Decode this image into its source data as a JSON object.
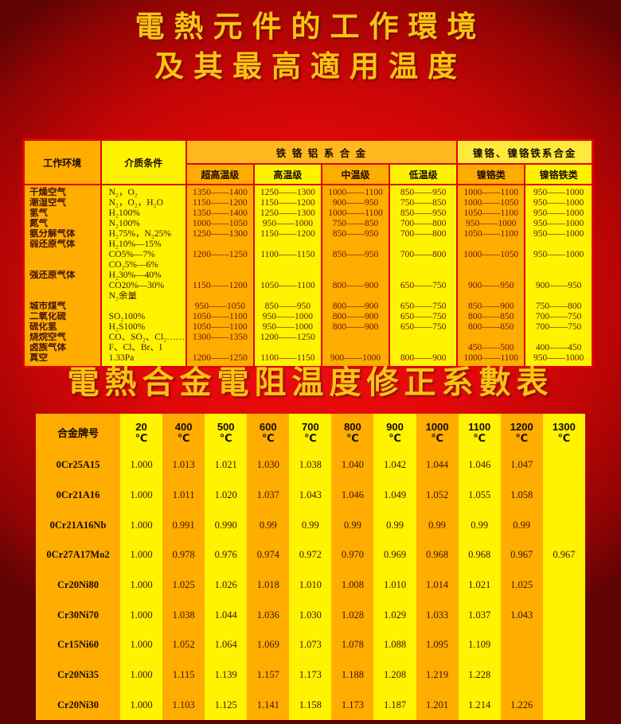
{
  "page": {
    "title_line1": "電熱元件的工作環境",
    "title_line2": "及其最高適用温度",
    "section2_title": "電熱合金電阻温度修正系數表"
  },
  "colors": {
    "background_red": "#d40808",
    "title_gold": "#f7c513",
    "band_orange": "#ffad00",
    "band_yellow": "#fff301",
    "grid_red": "#de0404",
    "value_text": "#6a1404"
  },
  "env_table": {
    "header": {
      "work_env": "工作环境",
      "medium": "介质条件",
      "fe_cr_al_group": "铁 铬 铝 系 合 金",
      "ni_cr_group": "镍铬、镍铬铁系合金",
      "sub": [
        "超高温级",
        "高温级",
        "中温级",
        "低温级",
        "镍铬类",
        "镍铬铁类"
      ]
    },
    "lines": [
      {
        "env": "干燥空气",
        "medium": "N₂，O₂",
        "values": [
          "1350——1400",
          "1250——1300",
          "1000——1100",
          "850——950",
          "1000——1100",
          "950——1000"
        ]
      },
      {
        "env": "潮湿空气",
        "medium": "N₂，O₂，H₂O",
        "values": [
          "1150——1200",
          "1150——1200",
          "900——950",
          "750——850",
          "1000——1050",
          "950——1000"
        ]
      },
      {
        "env": "氢气",
        "medium": "H₂100%",
        "values": [
          "1350——1400",
          "1250——1300",
          "1000——1100",
          "850——950",
          "1050——1100",
          "950——1000"
        ]
      },
      {
        "env": "氮气",
        "medium": "N₂100%",
        "values": [
          "1000——1050",
          "950——1000",
          "750——850",
          "700——800",
          "950——1000",
          "950——1000"
        ]
      },
      {
        "env": "氨分解气体",
        "medium": "H₂75%，N₂25%",
        "values": [
          "1250——1300",
          "1150——1200",
          "850——950",
          "700——800",
          "1050——1100",
          "950——1000"
        ]
      },
      {
        "env": "弱还原气体",
        "medium": "H₂10%—15%",
        "values": [
          "",
          "",
          "",
          "",
          "",
          ""
        ]
      },
      {
        "env": "",
        "medium": "CO5%—7%",
        "values": [
          "1200——1250",
          "1100——1150",
          "850——950",
          "700——800",
          "1000——1050",
          "950——1000"
        ]
      },
      {
        "env": "",
        "medium": "CO₂5%—6%",
        "values": [
          "",
          "",
          "",
          "",
          "",
          ""
        ]
      },
      {
        "env": "强还原气体",
        "medium": "H₂30%—40%",
        "values": [
          "",
          "",
          "",
          "",
          "",
          ""
        ]
      },
      {
        "env": "",
        "medium": "CO20%—30%",
        "values": [
          "1150——1200",
          "1050——1100",
          "800——900",
          "650——750",
          "900——950",
          "900——950"
        ]
      },
      {
        "env": "",
        "medium": "N₂余量",
        "values": [
          "",
          "",
          "",
          "",
          "",
          ""
        ]
      },
      {
        "env": "城市煤气",
        "medium": "",
        "values": [
          "950——1050",
          "850——950",
          "800——900",
          "650——750",
          "850——900",
          "750——800"
        ]
      },
      {
        "env": "二氧化硫",
        "medium": "SO₂100%",
        "values": [
          "1050——1100",
          "950——1000",
          "800——900",
          "650——750",
          "800——850",
          "700——750"
        ]
      },
      {
        "env": "硫化氢",
        "medium": "H₂S100%",
        "values": [
          "1050——1100",
          "950——1000",
          "800——900",
          "650——750",
          "800——850",
          "700——750"
        ]
      },
      {
        "env": "烧烷空气",
        "medium": "CO、SO₂、Cl₂……",
        "values": [
          "1300——1350",
          "1200——1250",
          "",
          "",
          "",
          ""
        ]
      },
      {
        "env": "卤族气体",
        "medium": "F、Cl、Br、I",
        "values": [
          "",
          "",
          "",
          "",
          "450——500",
          "400——450"
        ]
      },
      {
        "env": "真空",
        "medium": "1.33Pa",
        "values": [
          "1200——1250",
          "1100——1150",
          "900——1000",
          "800——900",
          "1000——1100",
          "950——1000"
        ]
      }
    ]
  },
  "coeff_table": {
    "col0_header": "合金牌号",
    "temp_unit": "℃",
    "temp_headers": [
      "20",
      "400",
      "500",
      "600",
      "700",
      "800",
      "900",
      "1000",
      "1100",
      "1200",
      "1300"
    ],
    "rows": [
      {
        "alloy": "0Cr25A15",
        "values": [
          "1.000",
          "1.013",
          "1.021",
          "1.030",
          "1.038",
          "1.040",
          "1.042",
          "1.044",
          "1.046",
          "1.047",
          ""
        ]
      },
      {
        "alloy": "0Cr21A16",
        "values": [
          "1.000",
          "1.011",
          "1.020",
          "1.037",
          "1.043",
          "1.046",
          "1.049",
          "1.052",
          "1.055",
          "1.058",
          ""
        ]
      },
      {
        "alloy": "0Cr21A16Nb",
        "values": [
          "1.000",
          "0.991",
          "0.990",
          "0.99",
          "0.99",
          "0.99",
          "0.99",
          "0.99",
          "0.99",
          "0.99",
          ""
        ]
      },
      {
        "alloy": "0Cr27A17Mo2",
        "values": [
          "1.000",
          "0.978",
          "0.976",
          "0.974",
          "0.972",
          "0.970",
          "0.969",
          "0.968",
          "0.968",
          "0.967",
          "0.967"
        ]
      },
      {
        "alloy": "Cr20Ni80",
        "values": [
          "1.000",
          "1.025",
          "1.026",
          "1.018",
          "1.010",
          "1.008",
          "1.010",
          "1.014",
          "1.021",
          "1.025",
          ""
        ]
      },
      {
        "alloy": "Cr30Ni70",
        "values": [
          "1.000",
          "1.038",
          "1.044",
          "1.036",
          "1.030",
          "1.028",
          "1.029",
          "1.033",
          "1.037",
          "1.043",
          ""
        ]
      },
      {
        "alloy": "Cr15Ni60",
        "values": [
          "1.000",
          "1.052",
          "1.064",
          "1.069",
          "1.073",
          "1.078",
          "1.088",
          "1.095",
          "1.109",
          "",
          ""
        ]
      },
      {
        "alloy": "Cr20Ni35",
        "values": [
          "1.000",
          "1.115",
          "1.139",
          "1.157",
          "1.173",
          "1.188",
          "1.208",
          "1.219",
          "1.228",
          "",
          ""
        ]
      },
      {
        "alloy": "Cr20Ni30",
        "values": [
          "1.000",
          "1.103",
          "1.125",
          "1.141",
          "1.158",
          "1.173",
          "1.187",
          "1.201",
          "1.214",
          "1.226",
          ""
        ]
      }
    ]
  }
}
